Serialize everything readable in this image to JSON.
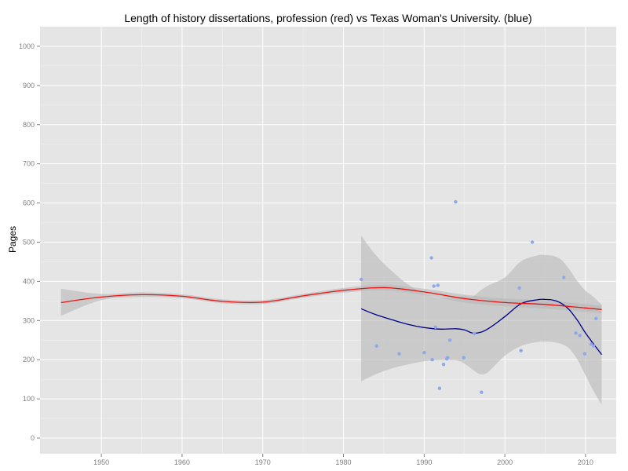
{
  "chart_data": {
    "type": "scatter",
    "title": "Length of history dissertations, profession (red) vs Texas Woman's University. (blue)",
    "xlabel": "",
    "ylabel": "Pages",
    "xlim": [
      1942.4,
      2013.8
    ],
    "ylim": [
      -40,
      1050
    ],
    "x_ticks": [
      1950,
      1960,
      1970,
      1980,
      1990,
      2000,
      2010
    ],
    "y_ticks": [
      0,
      100,
      200,
      300,
      400,
      500,
      600,
      700,
      800,
      900,
      1000
    ],
    "x_tick_labels": [
      "1950",
      "1960",
      "1970",
      "1980",
      "1990",
      "2000",
      "2010"
    ],
    "y_tick_labels": [
      "0",
      "100",
      "200",
      "300",
      "400",
      "500",
      "600",
      "700",
      "800",
      "900",
      "1000"
    ],
    "grid": true,
    "colors": {
      "panel": "#e5e5e5",
      "grid": "#ffffff",
      "profession": "#ee1111",
      "twu": "#00008b",
      "points": "#8ea8ea",
      "ribbon": "#b8b8b8"
    },
    "series": [
      {
        "kind": "points",
        "points": [
          [
            1982.2,
            405
          ],
          [
            1984.1,
            235
          ],
          [
            1986.9,
            215
          ],
          [
            1990.0,
            218
          ],
          [
            1990.9,
            460
          ],
          [
            1991.0,
            200
          ],
          [
            1991.2,
            388
          ],
          [
            1991.4,
            283
          ],
          [
            1991.7,
            390
          ],
          [
            1991.9,
            127
          ],
          [
            1992.4,
            188
          ],
          [
            1992.8,
            202
          ],
          [
            1992.9,
            205
          ],
          [
            1993.2,
            250
          ],
          [
            1993.9,
            603
          ],
          [
            1994.9,
            205
          ],
          [
            1996.2,
            267
          ],
          [
            1997.1,
            117
          ],
          [
            2001.8,
            383
          ],
          [
            2002.0,
            223
          ],
          [
            2003.4,
            500
          ],
          [
            2007.3,
            410
          ],
          [
            2008.8,
            268
          ],
          [
            2009.3,
            262
          ],
          [
            2009.9,
            215
          ],
          [
            2010.7,
            240
          ],
          [
            2011.0,
            235
          ],
          [
            2011.3,
            305
          ]
        ]
      },
      {
        "kind": "smooth",
        "x": [
          1982.2,
          1984,
          1986,
          1988,
          1990,
          1992,
          1994,
          1995,
          1996,
          1997,
          1998,
          2000,
          2002,
          2004,
          2005,
          2006,
          2007,
          2008,
          2009,
          2010,
          2011,
          2012
        ],
        "y": [
          330,
          315,
          302,
          290,
          282,
          278,
          279,
          276,
          268,
          270,
          280,
          310,
          343,
          353,
          354,
          352,
          344,
          327,
          300,
          268,
          240,
          213
        ],
        "lower": [
          145,
          163,
          178,
          188,
          196,
          199,
          198,
          190,
          175,
          163,
          170,
          210,
          235,
          245,
          246,
          245,
          240,
          228,
          200,
          160,
          120,
          85
        ],
        "upper": [
          517,
          467,
          426,
          392,
          368,
          357,
          360,
          362,
          361,
          377,
          390,
          410,
          451,
          466,
          467,
          465,
          455,
          430,
          400,
          376,
          360,
          340
        ]
      },
      {
        "kind": "smooth",
        "x": [
          1945,
          1950,
          1955,
          1960,
          1965,
          1970,
          1975,
          1980,
          1985,
          1990,
          1995,
          2000,
          2005,
          2010,
          2012
        ],
        "y": [
          346,
          360,
          366,
          362,
          349,
          347,
          363,
          377,
          384,
          373,
          356,
          346,
          341,
          332,
          328
        ],
        "lower": [
          312,
          352,
          360,
          357,
          344,
          342,
          358,
          371,
          377,
          365,
          346,
          336,
          330,
          322,
          318
        ],
        "upper": [
          381,
          368,
          372,
          367,
          354,
          352,
          368,
          383,
          391,
          381,
          366,
          356,
          352,
          342,
          338
        ]
      }
    ]
  }
}
